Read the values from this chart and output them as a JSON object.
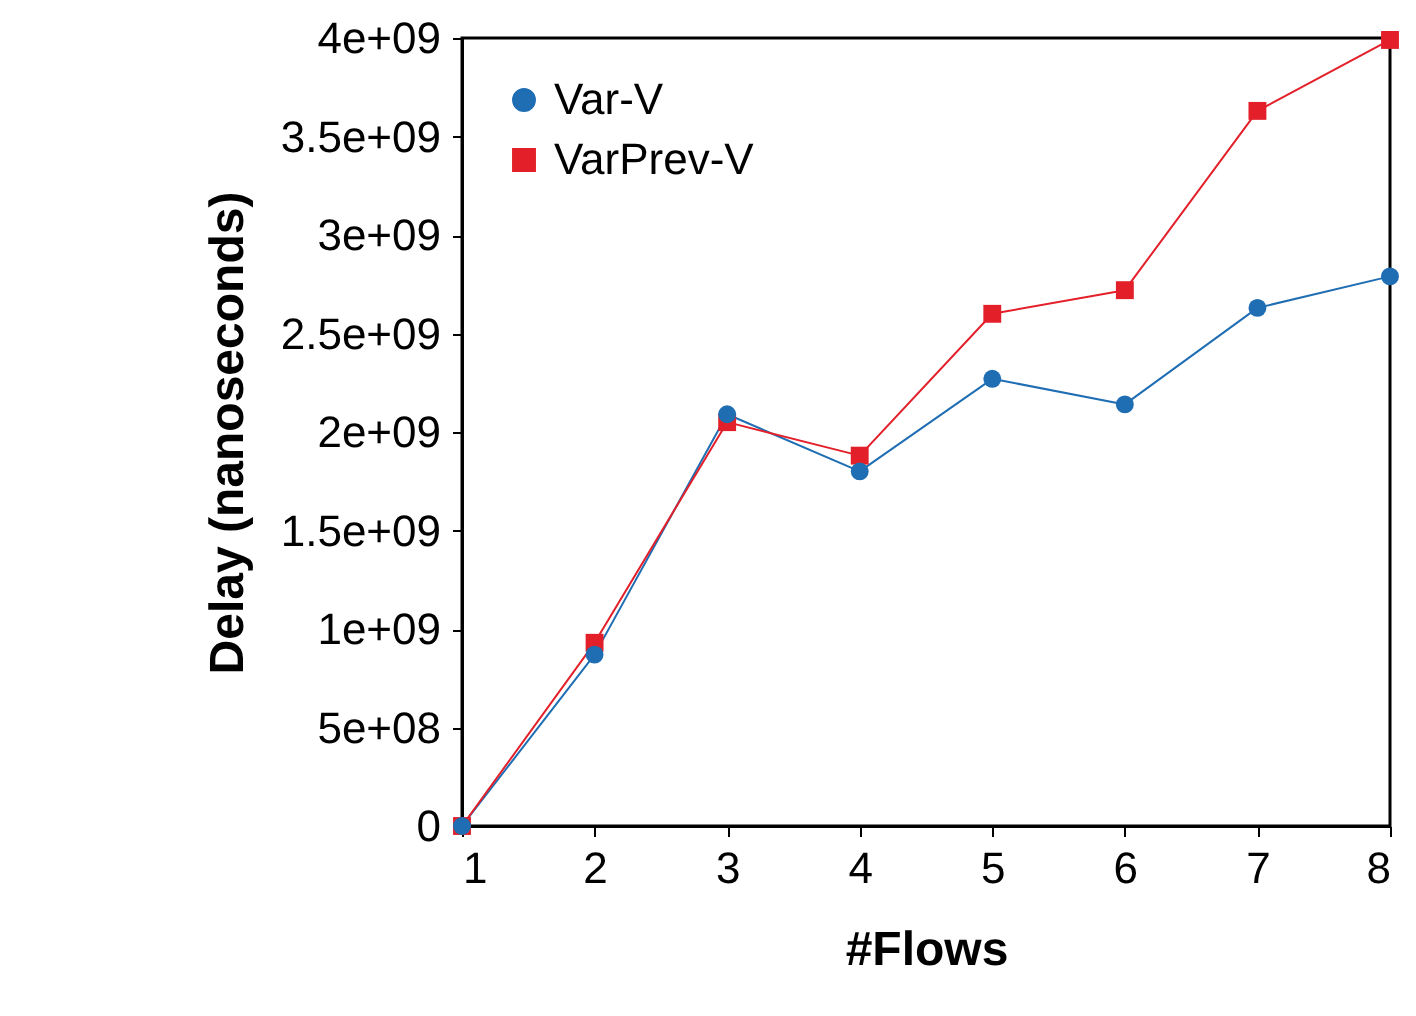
{
  "chart_data": {
    "type": "line",
    "xlabel": "#Flows",
    "ylabel": "Delay (nanoseconds)",
    "x": [
      1,
      2,
      3,
      4,
      5,
      6,
      7,
      8
    ],
    "series": [
      {
        "name": "Var-V",
        "color": "#1f6db3",
        "marker": "circle",
        "values": [
          0,
          870000000,
          2090000000,
          1800000000,
          2270000000,
          2140000000,
          2630000000,
          2790000000
        ]
      },
      {
        "name": "VarPrev-V",
        "color": "#e3202a",
        "marker": "square",
        "values": [
          0,
          930000000,
          2050000000,
          1880000000,
          2600000000,
          2720000000,
          3630000000,
          3990000000
        ]
      }
    ],
    "xlim": [
      1,
      8
    ],
    "xticks": [
      1,
      2,
      3,
      4,
      5,
      6,
      7,
      8
    ],
    "ylim": [
      0,
      4000000000
    ],
    "yticks": [
      {
        "value": 0,
        "label": "0"
      },
      {
        "value": 500000000,
        "label": "5e+08"
      },
      {
        "value": 1000000000,
        "label": "1e+09"
      },
      {
        "value": 1500000000,
        "label": "1.5e+09"
      },
      {
        "value": 2000000000,
        "label": "2e+09"
      },
      {
        "value": 2500000000,
        "label": "2.5e+09"
      },
      {
        "value": 3000000000,
        "label": "3e+09"
      },
      {
        "value": 3500000000,
        "label": "3.5e+09"
      },
      {
        "value": 4000000000,
        "label": "4e+09"
      }
    ],
    "grid": false,
    "legend": "top left",
    "line_style": "solid"
  }
}
